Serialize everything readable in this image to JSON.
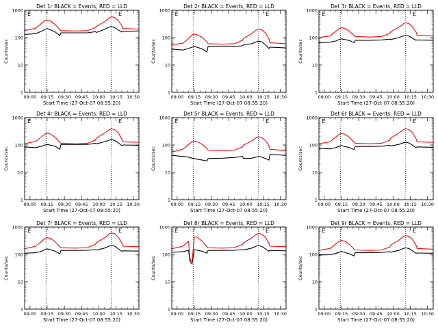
{
  "colors": {
    "events": "#000000",
    "lld": "#ff0000",
    "background": "#ffffff",
    "axes": "#000000"
  },
  "x_tick_labels": [
    "09:00",
    "09:15",
    "09:30",
    "09:45",
    "10:00",
    "10:15",
    "10:30"
  ],
  "xlabel": "Start Time (27-Oct-07 08:55:20)",
  "ylabel": "Counts/sec",
  "y_tick_labels": [
    "1",
    "10",
    "100",
    "1000"
  ],
  "chart_data": [
    {
      "type": "line",
      "title": "Det 1r BLACK = Events, RED = LLD",
      "xlabel": "Start Time (27-Oct-07 08:55:20)",
      "ylabel": "Counts/sec",
      "yscale": "log",
      "ylim": [
        1,
        1000
      ],
      "xlim": [
        "08:55:20",
        "10:35:00"
      ],
      "vlines": [
        "09:14",
        "10:11"
      ],
      "flags": [
        "E",
        "E"
      ],
      "x": [
        "08:55",
        "09:05",
        "09:10",
        "09:13",
        "09:15",
        "09:18",
        "09:22",
        "09:26",
        "09:27",
        "09:40",
        "09:50",
        "09:57",
        "09:58",
        "10:05",
        "10:09",
        "10:11",
        "10:14",
        "10:17",
        "10:20",
        "10:21",
        "10:35"
      ],
      "series": [
        {
          "name": "BLACK = Events",
          "values": [
            130,
            140,
            170,
            200,
            215,
            190,
            160,
            120,
            150,
            150,
            150,
            165,
            155,
            200,
            240,
            255,
            230,
            190,
            160,
            170,
            175
          ]
        },
        {
          "name": "RED = LLD",
          "values": [
            180,
            220,
            330,
            420,
            440,
            400,
            300,
            200,
            180,
            175,
            180,
            230,
            260,
            380,
            520,
            580,
            540,
            420,
            280,
            215,
            205
          ]
        }
      ]
    },
    {
      "type": "line",
      "title": "Det 2r BLACK = Events, RED = LLD",
      "xlabel": "Start Time (27-Oct-07 08:55:20)",
      "ylabel": "Counts/sec",
      "yscale": "log",
      "ylim": [
        1,
        1000
      ],
      "xlim": [
        "08:55:20",
        "10:35:00"
      ],
      "vlines": [
        "09:14",
        "10:11"
      ],
      "flags": [
        "E",
        "E"
      ],
      "x": [
        "08:55",
        "09:05",
        "09:10",
        "09:13",
        "09:15",
        "09:18",
        "09:22",
        "09:26",
        "09:27",
        "09:40",
        "09:50",
        "09:57",
        "09:58",
        "10:05",
        "10:09",
        "10:11",
        "10:14",
        "10:17",
        "10:20",
        "10:21",
        "10:35"
      ],
      "series": [
        {
          "name": "BLACK = Events",
          "values": [
            38,
            35,
            40,
            45,
            47,
            44,
            38,
            30,
            48,
            48,
            48,
            50,
            55,
            60,
            70,
            75,
            70,
            55,
            40,
            45,
            42
          ]
        },
        {
          "name": "RED = LLD",
          "values": [
            55,
            62,
            95,
            125,
            135,
            125,
            100,
            70,
            60,
            58,
            60,
            80,
            95,
            140,
            190,
            205,
            190,
            150,
            90,
            65,
            60
          ]
        }
      ]
    },
    {
      "type": "line",
      "title": "Det 3r BLACK = Events, RED = LLD",
      "xlabel": "Start Time (27-Oct-07 08:55:20)",
      "ylabel": "Counts/sec",
      "yscale": "log",
      "ylim": [
        1,
        1000
      ],
      "xlim": [
        "08:55:20",
        "10:35:00"
      ],
      "vlines": [
        "09:14",
        "10:11"
      ],
      "flags": [
        "E",
        "E"
      ],
      "x": [
        "08:55",
        "09:05",
        "09:10",
        "09:13",
        "09:15",
        "09:18",
        "09:22",
        "09:26",
        "09:27",
        "09:40",
        "09:50",
        "09:57",
        "09:58",
        "10:05",
        "10:09",
        "10:11",
        "10:14",
        "10:17",
        "10:20",
        "10:21",
        "10:35"
      ],
      "series": [
        {
          "name": "BLACK = Events",
          "values": [
            65,
            68,
            75,
            85,
            90,
            85,
            78,
            65,
            80,
            80,
            82,
            88,
            85,
            100,
            115,
            120,
            112,
            95,
            80,
            82,
            80
          ]
        },
        {
          "name": "RED = LLD",
          "values": [
            100,
            115,
            170,
            215,
            230,
            215,
            170,
            120,
            110,
            105,
            110,
            140,
            165,
            240,
            320,
            350,
            320,
            250,
            160,
            120,
            115
          ]
        }
      ]
    },
    {
      "type": "line",
      "title": "Det 4r BLACK = Events, RED = LLD",
      "xlabel": "Start Time (27-Oct-07 08:55:20)",
      "ylabel": "Counts/sec",
      "yscale": "log",
      "ylim": [
        1,
        1000
      ],
      "xlim": [
        "08:55:20",
        "10:35:00"
      ],
      "vlines": [
        "09:14",
        "10:11"
      ],
      "flags": [
        "E",
        "E"
      ],
      "x": [
        "08:55",
        "09:05",
        "09:10",
        "09:13",
        "09:15",
        "09:18",
        "09:22",
        "09:26",
        "09:27",
        "09:40",
        "09:50",
        "09:57",
        "09:58",
        "10:05",
        "10:09",
        "10:11",
        "10:14",
        "10:17",
        "10:20",
        "10:21",
        "10:35"
      ],
      "series": [
        {
          "name": "BLACK = Events",
          "values": [
            85,
            80,
            90,
            100,
            105,
            98,
            90,
            70,
            105,
            105,
            105,
            115,
            110,
            130,
            150,
            160,
            145,
            120,
            95,
            100,
            98
          ]
        },
        {
          "name": "RED = LLD",
          "values": [
            110,
            135,
            200,
            250,
            270,
            250,
            190,
            125,
            115,
            110,
            115,
            150,
            180,
            270,
            360,
            390,
            360,
            280,
            170,
            130,
            125
          ]
        }
      ]
    },
    {
      "type": "line",
      "title": "Det 5r BLACK = Events, RED = LLD",
      "xlabel": "Start Time (27-Oct-07 08:55:20)",
      "ylabel": "Counts/sec",
      "yscale": "log",
      "ylim": [
        1,
        1000
      ],
      "xlim": [
        "08:55:20",
        "10:35:00"
      ],
      "vlines": [
        "09:14",
        "10:11"
      ],
      "flags": [
        "E",
        "E"
      ],
      "x": [
        "08:55",
        "09:05",
        "09:10",
        "09:13",
        "09:15",
        "09:18",
        "09:22",
        "09:26",
        "09:27",
        "09:40",
        "09:50",
        "09:57",
        "09:58",
        "10:05",
        "10:09",
        "10:11",
        "10:14",
        "10:17",
        "10:20",
        "10:21",
        "10:35"
      ],
      "series": [
        {
          "name": "BLACK = Events",
          "values": [
            42,
            38,
            36,
            33,
            32,
            30,
            28,
            26,
            32,
            33,
            35,
            38,
            32,
            33,
            36,
            38,
            36,
            32,
            28,
            45,
            42
          ]
        },
        {
          "name": "RED = LLD",
          "values": [
            55,
            70,
            105,
            130,
            140,
            130,
            105,
            75,
            65,
            62,
            65,
            85,
            100,
            140,
            185,
            200,
            185,
            145,
            95,
            70,
            62
          ]
        }
      ]
    },
    {
      "type": "line",
      "title": "Det 6r BLACK = Events, RED = LLD",
      "xlabel": "Start Time (27-Oct-07 08:55:20)",
      "ylabel": "Counts/sec",
      "yscale": "log",
      "ylim": [
        1,
        1000
      ],
      "xlim": [
        "08:55:20",
        "10:35:00"
      ],
      "vlines": [
        "09:14",
        "10:11"
      ],
      "flags": [
        "E",
        "E"
      ],
      "x": [
        "08:55",
        "09:05",
        "09:10",
        "09:13",
        "09:15",
        "09:18",
        "09:22",
        "09:26",
        "09:27",
        "09:40",
        "09:50",
        "09:57",
        "09:58",
        "10:05",
        "10:09",
        "10:11",
        "10:14",
        "10:17",
        "10:20",
        "10:21",
        "10:35"
      ],
      "series": [
        {
          "name": "BLACK = Events",
          "values": [
            75,
            72,
            80,
            90,
            95,
            88,
            80,
            68,
            88,
            88,
            90,
            98,
            92,
            105,
            120,
            125,
            118,
            98,
            80,
            85,
            82
          ]
        },
        {
          "name": "RED = LLD",
          "values": [
            110,
            130,
            195,
            245,
            265,
            245,
            190,
            125,
            115,
            110,
            115,
            150,
            180,
            270,
            360,
            390,
            360,
            280,
            170,
            130,
            125
          ]
        }
      ]
    },
    {
      "type": "line",
      "title": "Det 7r BLACK = Events, RED = LLD",
      "xlabel": "Start Time (27-Oct-07 08:55:20)",
      "ylabel": "Counts/sec",
      "yscale": "log",
      "ylim": [
        1,
        1000
      ],
      "xlim": [
        "08:55:20",
        "10:35:00"
      ],
      "vlines": [
        "09:14",
        "10:11"
      ],
      "flags": [
        "E",
        "E"
      ],
      "x": [
        "08:55",
        "09:05",
        "09:10",
        "09:13",
        "09:15",
        "09:18",
        "09:22",
        "09:26",
        "09:27",
        "09:40",
        "09:50",
        "09:57",
        "09:58",
        "10:05",
        "10:09",
        "10:11",
        "10:14",
        "10:17",
        "10:20",
        "10:21",
        "10:35"
      ],
      "series": [
        {
          "name": "BLACK = Events",
          "values": [
            110,
            115,
            130,
            150,
            160,
            148,
            130,
            105,
            140,
            140,
            142,
            150,
            145,
            170,
            200,
            215,
            200,
            160,
            130,
            135,
            132
          ]
        },
        {
          "name": "RED = LLD",
          "values": [
            160,
            200,
            300,
            380,
            410,
            380,
            290,
            190,
            175,
            170,
            178,
            230,
            270,
            400,
            560,
            610,
            560,
            430,
            270,
            200,
            190
          ]
        }
      ]
    },
    {
      "type": "line",
      "title": "Det 8r BLACK = Events, RED = LLD",
      "xlabel": "Start Time (27-Oct-07 08:55:20)",
      "ylabel": "Counts/sec",
      "yscale": "log",
      "ylim": [
        1,
        1000
      ],
      "xlim": [
        "08:55:20",
        "10:35:00"
      ],
      "vlines": [
        "09:14",
        "10:11"
      ],
      "flags": [
        "E",
        "E"
      ],
      "x": [
        "08:55",
        "09:05",
        "09:08",
        "09:10",
        "09:11",
        "09:12",
        "09:13",
        "09:15",
        "09:17",
        "09:18",
        "09:22",
        "09:26",
        "09:27",
        "09:40",
        "09:50",
        "09:57",
        "09:58",
        "10:05",
        "10:09",
        "10:11",
        "10:14",
        "10:17",
        "10:20",
        "10:21",
        "10:35"
      ],
      "series": [
        {
          "name": "BLACK = Events",
          "values": [
            120,
            125,
            135,
            140,
            60,
            50,
            45,
            150,
            145,
            140,
            130,
            110,
            140,
            140,
            142,
            150,
            145,
            170,
            200,
            210,
            195,
            160,
            130,
            140,
            135
          ]
        },
        {
          "name": "RED = LLD",
          "values": [
            160,
            200,
            260,
            300,
            75,
            60,
            55,
            440,
            430,
            410,
            300,
            190,
            175,
            170,
            178,
            230,
            270,
            400,
            540,
            590,
            540,
            420,
            260,
            200,
            190
          ]
        }
      ]
    },
    {
      "type": "line",
      "title": "Det 9r BLACK = Events, RED = LLD",
      "xlabel": "Start Time (27-Oct-07 08:55:20)",
      "ylabel": "Counts/sec",
      "yscale": "log",
      "ylim": [
        1,
        1000
      ],
      "xlim": [
        "08:55:20",
        "10:35:00"
      ],
      "vlines": [
        "09:14",
        "10:11"
      ],
      "flags": [
        "E",
        "E"
      ],
      "x": [
        "08:55",
        "09:05",
        "09:10",
        "09:13",
        "09:15",
        "09:18",
        "09:22",
        "09:26",
        "09:27",
        "09:40",
        "09:50",
        "09:57",
        "09:58",
        "10:05",
        "10:09",
        "10:11",
        "10:14",
        "10:17",
        "10:20",
        "10:21",
        "10:35"
      ],
      "series": [
        {
          "name": "BLACK = Events",
          "values": [
            95,
            98,
            108,
            120,
            128,
            118,
            105,
            88,
            115,
            115,
            118,
            125,
            120,
            140,
            165,
            175,
            162,
            135,
            110,
            112,
            110
          ]
        },
        {
          "name": "RED = LLD",
          "values": [
            140,
            165,
            240,
            300,
            325,
            300,
            230,
            155,
            145,
            140,
            145,
            185,
            220,
            330,
            450,
            490,
            450,
            350,
            220,
            165,
            155
          ]
        }
      ]
    }
  ]
}
